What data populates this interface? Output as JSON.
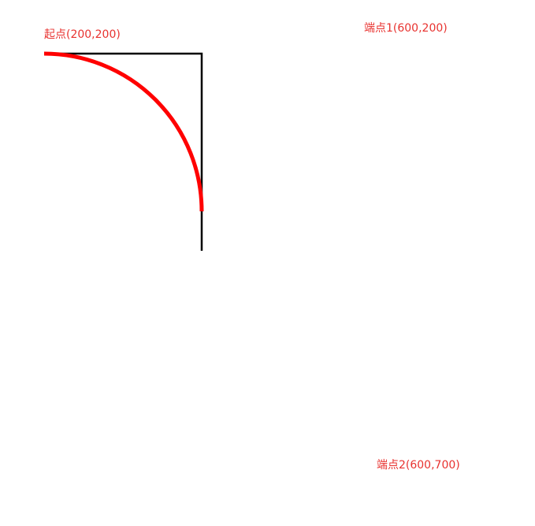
{
  "colors": {
    "label": "#e8322f",
    "guide_line": "#000000",
    "arc": "#ff0000",
    "background": "#ffffff"
  },
  "labels": {
    "start_point": "起点(200,200)",
    "end_point_1": "端点1(600,200)",
    "end_point_2": "端点2(600,700)"
  },
  "points": {
    "start": [
      200,
      200
    ],
    "control_1": [
      600,
      200
    ],
    "control_2": [
      600,
      700
    ]
  }
}
